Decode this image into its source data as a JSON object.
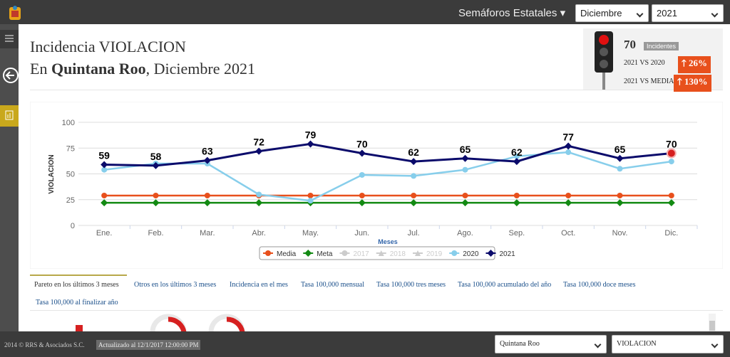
{
  "topbar": {
    "menu": "Semáforos Estatales",
    "month": "Diciembre",
    "year": "2021"
  },
  "header": {
    "title": "Incidencia VIOLACION",
    "subtitle_prefix": "En ",
    "subtitle_state": "Quintana Roo",
    "subtitle_suffix": ", Diciembre 2021"
  },
  "summary": {
    "count": "70",
    "count_label": "Incidentes",
    "vs_prev_label": "2021 VS 2020",
    "vs_prev": "26%",
    "vs_mean_label": "2021 VS MEDIA",
    "vs_mean": "130%"
  },
  "chart_data": {
    "type": "line",
    "y_label": "VIOLACION",
    "x_label": "Meses",
    "categories": [
      "Ene.",
      "Feb.",
      "Mar.",
      "Abr.",
      "May.",
      "Jun.",
      "Jul.",
      "Ago.",
      "Sep.",
      "Oct.",
      "Nov.",
      "Dic."
    ],
    "ylim": [
      0,
      100
    ],
    "yticks": [
      0,
      25,
      50,
      75,
      100
    ],
    "grid": true,
    "legend": "bottom",
    "series": [
      {
        "name": "Media",
        "color": "#e8501c",
        "marker": "circle",
        "visible": true,
        "values": [
          29,
          29,
          29,
          29,
          29,
          29,
          29,
          29,
          29,
          29,
          29,
          29
        ]
      },
      {
        "name": "Meta",
        "color": "#138a13",
        "marker": "diamond",
        "visible": true,
        "values": [
          22,
          22,
          22,
          22,
          22,
          22,
          22,
          22,
          22,
          22,
          22,
          22
        ]
      },
      {
        "name": "2017",
        "color": "#cccccc",
        "marker": "circle",
        "visible": false,
        "values": [
          null,
          null,
          null,
          null,
          null,
          null,
          null,
          null,
          null,
          null,
          null,
          null
        ]
      },
      {
        "name": "2018",
        "color": "#cccccc",
        "marker": "triangle",
        "visible": false,
        "values": [
          null,
          null,
          null,
          null,
          null,
          null,
          null,
          null,
          null,
          null,
          null,
          null
        ]
      },
      {
        "name": "2019",
        "color": "#cccccc",
        "marker": "triangle",
        "visible": false,
        "values": [
          null,
          null,
          null,
          null,
          null,
          null,
          null,
          null,
          null,
          null,
          null,
          null
        ]
      },
      {
        "name": "2020",
        "color": "#87ceeb",
        "marker": "circle",
        "visible": true,
        "values": [
          54,
          60,
          60,
          30,
          24,
          49,
          48,
          54,
          67,
          71,
          55,
          62
        ]
      },
      {
        "name": "2021",
        "color": "#0b0b6b",
        "marker": "diamond",
        "visible": true,
        "labels": true,
        "values": [
          59,
          58,
          63,
          72,
          79,
          70,
          62,
          65,
          62,
          77,
          65,
          70
        ]
      }
    ]
  },
  "tabs": [
    "Pareto en los últimos 3 meses",
    "Otros en los últimos 3 meses",
    "Incidencia en el mes",
    "Tasa 100,000 mensual",
    "Tasa 100,000 tres meses",
    "Tasa 100,000 acumulado del año",
    "Tasa 100,000 doce meses",
    "Tasa 100,000 al finalizar año"
  ],
  "footer": {
    "copyright": "2014 © RRS & Asociados S.C.",
    "updated": "Actualizado al 12/1/2017 12:00:00 PM",
    "state": "Quintana Roo",
    "crime": "VIOLACION"
  }
}
